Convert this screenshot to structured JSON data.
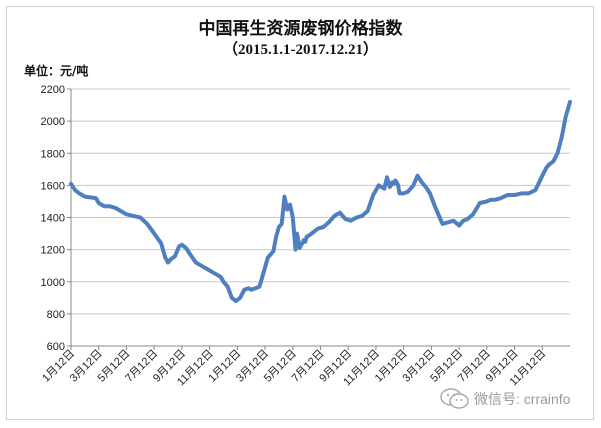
{
  "chart_data": {
    "type": "line",
    "title": "中国再生资源废钢价格指数",
    "subtitle": "（2015.1.1-2017.12.21）",
    "unit_label": "单位：元/吨",
    "xlabel": "",
    "ylabel": "",
    "ylim": [
      600,
      2200
    ],
    "yticks": [
      600,
      800,
      1000,
      1200,
      1400,
      1600,
      1800,
      2000,
      2200
    ],
    "xticks": [
      "1月12日",
      "3月12日",
      "5月12日",
      "7月12日",
      "9月12日",
      "11月12日",
      "1月12日",
      "3月12日",
      "5月12日",
      "7月12日",
      "9月12日",
      "11月12日",
      "1月12日",
      "3月12日",
      "5月12日",
      "7月12日",
      "9月12日",
      "11月12日"
    ],
    "xlim": [
      0,
      36
    ],
    "grid": "horizontal",
    "legend": "none",
    "series": [
      {
        "color": "#4f7fbf",
        "x": [
          0,
          0.3,
          0.6,
          1,
          1.4,
          1.8,
          2,
          2.4,
          2.8,
          3.2,
          3.6,
          4,
          4.5,
          5,
          5.5,
          6,
          6.5,
          6.8,
          7,
          7.2,
          7.5,
          7.8,
          8,
          8.3,
          8.6,
          9,
          9.4,
          9.8,
          10,
          10.4,
          10.8,
          11,
          11.3,
          11.6,
          11.9,
          12.2,
          12.5,
          12.8,
          13,
          13.3,
          13.6,
          13.9,
          14.2,
          14.4,
          14.6,
          14.8,
          15,
          15.2,
          15.4,
          15.6,
          15.8,
          16,
          16.2,
          16.3,
          16.4,
          16.5,
          16.6,
          16.7,
          16.8,
          16.9,
          17,
          17.2,
          17.5,
          17.8,
          18.2,
          18.6,
          19,
          19.4,
          19.8,
          20.2,
          20.6,
          21,
          21.4,
          21.8,
          22.2,
          22.6,
          22.8,
          23,
          23.2,
          23.3,
          23.4,
          23.5,
          23.6,
          23.7,
          24,
          24.3,
          24.5,
          24.7,
          25,
          25.3,
          25.6,
          25.9,
          26.2,
          26.5,
          26.8,
          27.2,
          27.6,
          28,
          28.3,
          28.6,
          29,
          29.5,
          30,
          30.3,
          30.6,
          31,
          31.5,
          32,
          32.5,
          33,
          33.5,
          34,
          34.3,
          34.5,
          34.8,
          35.1,
          35.4,
          35.7,
          36
        ],
        "values": [
          1610,
          1570,
          1550,
          1530,
          1525,
          1520,
          1490,
          1470,
          1470,
          1460,
          1440,
          1420,
          1410,
          1400,
          1360,
          1300,
          1240,
          1150,
          1120,
          1140,
          1160,
          1220,
          1230,
          1210,
          1170,
          1120,
          1100,
          1080,
          1070,
          1050,
          1030,
          1000,
          970,
          900,
          880,
          900,
          950,
          960,
          950,
          960,
          970,
          1060,
          1150,
          1170,
          1190,
          1280,
          1340,
          1360,
          1530,
          1450,
          1480,
          1400,
          1200,
          1300,
          1260,
          1210,
          1230,
          1240,
          1260,
          1250,
          1280,
          1290,
          1310,
          1330,
          1340,
          1370,
          1410,
          1430,
          1390,
          1380,
          1400,
          1410,
          1440,
          1540,
          1600,
          1580,
          1650,
          1590,
          1620,
          1610,
          1630,
          1620,
          1600,
          1550,
          1550,
          1560,
          1580,
          1600,
          1660,
          1620,
          1590,
          1550,
          1480,
          1420,
          1360,
          1370,
          1380,
          1350,
          1380,
          1390,
          1420,
          1490,
          1500,
          1510,
          1510,
          1520,
          1540,
          1540,
          1550,
          1550,
          1570,
          1660,
          1710,
          1730,
          1750,
          1800,
          1900,
          2030,
          2120
        ]
      }
    ]
  },
  "watermark": {
    "icon": "wechat-icon",
    "text": "微信号: crrainfo"
  }
}
